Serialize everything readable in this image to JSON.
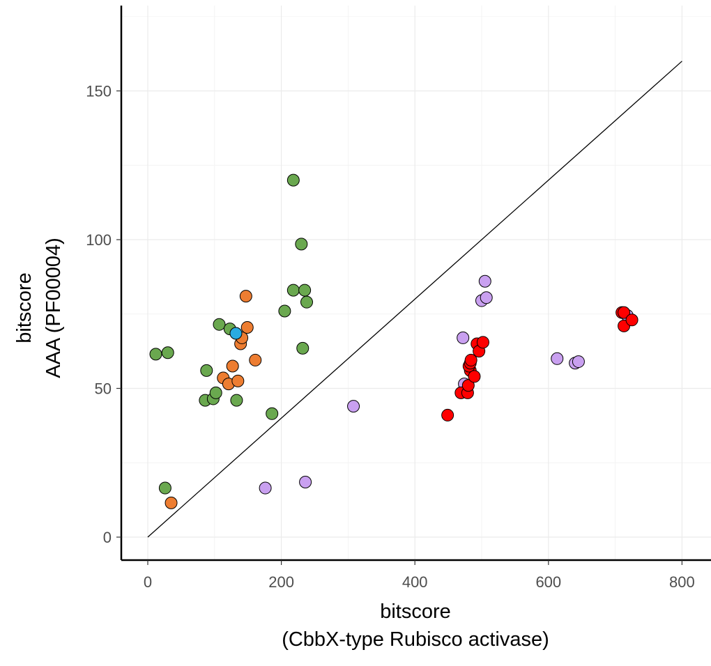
{
  "chart_data": {
    "type": "scatter",
    "title": "",
    "xlabel": [
      "bitscore",
      "(CbbX-type Rubisco activase)"
    ],
    "ylabel": [
      "bitscore",
      "AAA (PF00004)"
    ],
    "xlim": [
      -10,
      830
    ],
    "ylim": [
      -8,
      178
    ],
    "x_ticks": [
      0,
      200,
      400,
      600,
      800
    ],
    "y_ticks": [
      0,
      50,
      100,
      150
    ],
    "grid": true,
    "legend": "none",
    "reference_line": {
      "x": [
        0,
        800
      ],
      "y": [
        0,
        160
      ]
    },
    "series": [
      {
        "color": "#6aa84f",
        "points": [
          [
            12,
            61.5
          ],
          [
            30,
            62
          ],
          [
            26,
            16.5
          ],
          [
            88,
            56
          ],
          [
            86,
            46
          ],
          [
            98,
            46.5
          ],
          [
            102,
            48.5
          ],
          [
            107,
            71.5
          ],
          [
            123,
            70
          ],
          [
            133,
            46
          ],
          [
            186,
            41.5
          ],
          [
            205,
            76
          ],
          [
            218,
            83
          ],
          [
            218,
            120
          ],
          [
            230,
            98.5
          ],
          [
            235,
            83
          ],
          [
            238,
            79
          ],
          [
            232,
            63.5
          ]
        ]
      },
      {
        "color": "#ed7d31",
        "points": [
          [
            35,
            11.5
          ],
          [
            113,
            53.5
          ],
          [
            121,
            51.5
          ],
          [
            127,
            57.5
          ],
          [
            135,
            52.5
          ],
          [
            139,
            65
          ],
          [
            141,
            67
          ],
          [
            147,
            81
          ],
          [
            149,
            70.5
          ],
          [
            161,
            59.5
          ]
        ]
      },
      {
        "color": "#29abe2",
        "points": [
          [
            132,
            68.5
          ]
        ]
      },
      {
        "color": "#c9a0f0",
        "points": [
          [
            176,
            16.5
          ],
          [
            236,
            18.5
          ],
          [
            308,
            44
          ],
          [
            474,
            51.5
          ],
          [
            472,
            67
          ],
          [
            500,
            79.5
          ],
          [
            507,
            80.5
          ],
          [
            505,
            86
          ],
          [
            613,
            60
          ],
          [
            640,
            58.5
          ],
          [
            645,
            59
          ],
          [
            718,
            74.5
          ]
        ]
      },
      {
        "color": "#ff0000",
        "points": [
          [
            449,
            41
          ],
          [
            469,
            48.5
          ],
          [
            479,
            48.5
          ],
          [
            480,
            51
          ],
          [
            483,
            56
          ],
          [
            481,
            57.5
          ],
          [
            483,
            58.5
          ],
          [
            484,
            59.5
          ],
          [
            489,
            54
          ],
          [
            493,
            65
          ],
          [
            496,
            62.5
          ],
          [
            502,
            65.5
          ],
          [
            710,
            75.5
          ],
          [
            713,
            75.5
          ],
          [
            713,
            71
          ],
          [
            725,
            73
          ]
        ]
      }
    ]
  }
}
